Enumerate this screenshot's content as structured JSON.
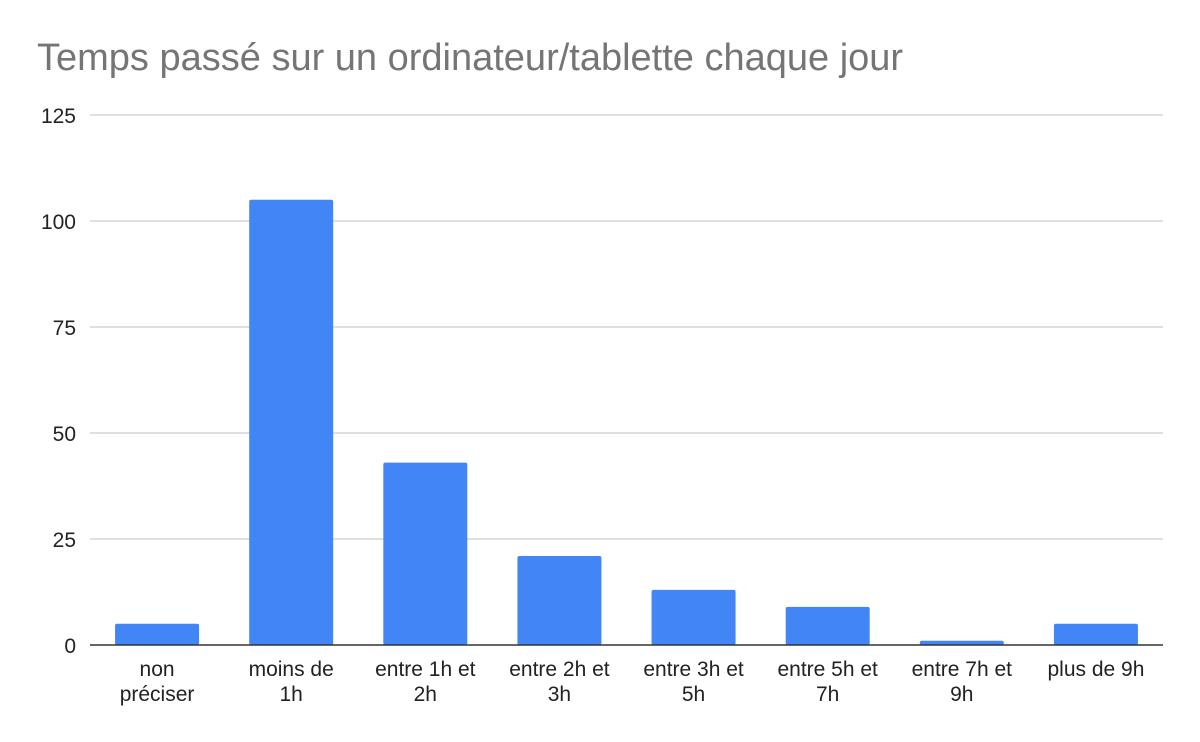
{
  "chart_data": {
    "type": "bar",
    "title": "Temps passé sur un ordinateur/tablette chaque jour",
    "xlabel": "",
    "ylabel": "",
    "categories": [
      [
        "non",
        "préciser"
      ],
      [
        "moins de",
        "1h"
      ],
      [
        "entre 1h et",
        "2h"
      ],
      [
        "entre 2h et",
        "3h"
      ],
      [
        "entre 3h et",
        "5h"
      ],
      [
        "entre 5h et",
        "7h"
      ],
      [
        "entre 7h et",
        "9h"
      ],
      [
        "plus de 9h"
      ]
    ],
    "values": [
      5,
      105,
      43,
      21,
      13,
      9,
      1,
      5
    ],
    "ylim": [
      0,
      125
    ],
    "yticks": [
      0,
      25,
      50,
      75,
      100,
      125
    ],
    "grid": true,
    "legend": "none",
    "bar_color": "#4285f4"
  }
}
